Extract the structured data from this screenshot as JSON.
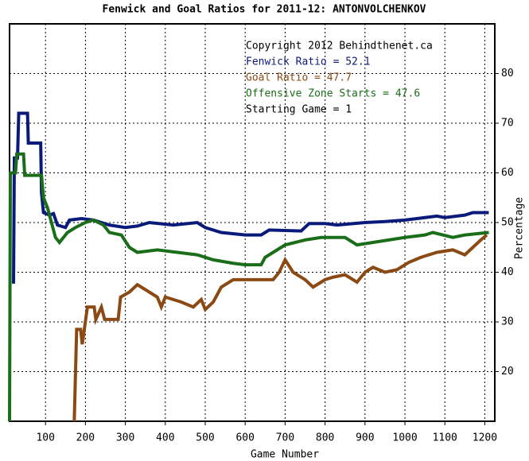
{
  "chart_data": {
    "type": "line",
    "title": "Fenwick and Goal Ratios for 2011-12: ANTONVOLCHENKOV",
    "xlabel": "Game Number",
    "ylabel": "Percentage",
    "annotations": [
      "Copyright 2012 Behindthenet.ca",
      "Starting Game = 1"
    ],
    "xlim": [
      10,
      1225
    ],
    "ylim": [
      10,
      90
    ],
    "xticks": [
      100,
      200,
      300,
      400,
      500,
      600,
      700,
      800,
      900,
      1000,
      1100,
      1200
    ],
    "yticks": [
      20,
      30,
      40,
      50,
      60,
      70,
      80
    ],
    "grid": true,
    "series": [
      {
        "name": "Fenwick Ratio = 52.1",
        "color": "#0a1a7a",
        "x": [
          20,
          22,
          30,
          33,
          55,
          57,
          88,
          90,
          95,
          110,
          120,
          130,
          150,
          160,
          190,
          220,
          260,
          300,
          330,
          360,
          420,
          480,
          500,
          540,
          600,
          640,
          660,
          740,
          760,
          800,
          830,
          900,
          950,
          1000,
          1050,
          1080,
          1100,
          1150,
          1170,
          1210
        ],
        "values": [
          37.7,
          63,
          63,
          72,
          72,
          66,
          66,
          56,
          52,
          51.5,
          51.8,
          49.5,
          49,
          50.5,
          50.8,
          50.5,
          49.5,
          49,
          49.3,
          50,
          49.5,
          50,
          49,
          48,
          47.5,
          47.5,
          48.5,
          48.3,
          49.8,
          49.8,
          49.5,
          50,
          50.2,
          50.5,
          51,
          51.3,
          51,
          51.5,
          52,
          52
        ]
      },
      {
        "name": "Goal Ratio = 47.7",
        "color": "#8b4a14",
        "x": [
          172,
          178,
          188,
          192,
          205,
          222,
          226,
          240,
          248,
          282,
          288,
          310,
          330,
          380,
          390,
          400,
          440,
          470,
          490,
          500,
          520,
          540,
          570,
          670,
          685,
          700,
          720,
          750,
          770,
          800,
          820,
          850,
          880,
          900,
          920,
          950,
          980,
          1010,
          1040,
          1080,
          1120,
          1150,
          1170,
          1190,
          1205
        ],
        "values": [
          10,
          28.5,
          28.5,
          25.5,
          33,
          33,
          30.5,
          33,
          30.5,
          30.5,
          35,
          36,
          37.5,
          35,
          33,
          35,
          34,
          33,
          34.5,
          32.5,
          34,
          37,
          38.5,
          38.5,
          40,
          42.5,
          40,
          38.5,
          37,
          38.5,
          39,
          39.5,
          38,
          40,
          41,
          40,
          40.5,
          42,
          43,
          44,
          44.5,
          43.5,
          45,
          46.5,
          47.5
        ]
      },
      {
        "name": "Offensive Zone Starts = 47.6",
        "color": "#1a6e1a",
        "x": [
          10,
          12,
          25,
          28,
          45,
          48,
          90,
          95,
          105,
          115,
          125,
          135,
          155,
          175,
          200,
          220,
          245,
          260,
          290,
          310,
          330,
          380,
          430,
          480,
          520,
          570,
          600,
          640,
          650,
          680,
          700,
          750,
          790,
          850,
          880,
          920,
          960,
          1000,
          1050,
          1070,
          1120,
          1150,
          1210
        ],
        "values": [
          10,
          60,
          60,
          63.8,
          63.8,
          59.5,
          59.5,
          55,
          53,
          50,
          47,
          46,
          48,
          49,
          50,
          50.5,
          49.5,
          48,
          47.5,
          45,
          44,
          44.5,
          44,
          43.5,
          42.5,
          41.8,
          41.5,
          41.5,
          43,
          44.5,
          45.5,
          46.5,
          47,
          47,
          45.5,
          46,
          46.5,
          47,
          47.5,
          48,
          47,
          47.5,
          48
        ]
      }
    ]
  }
}
